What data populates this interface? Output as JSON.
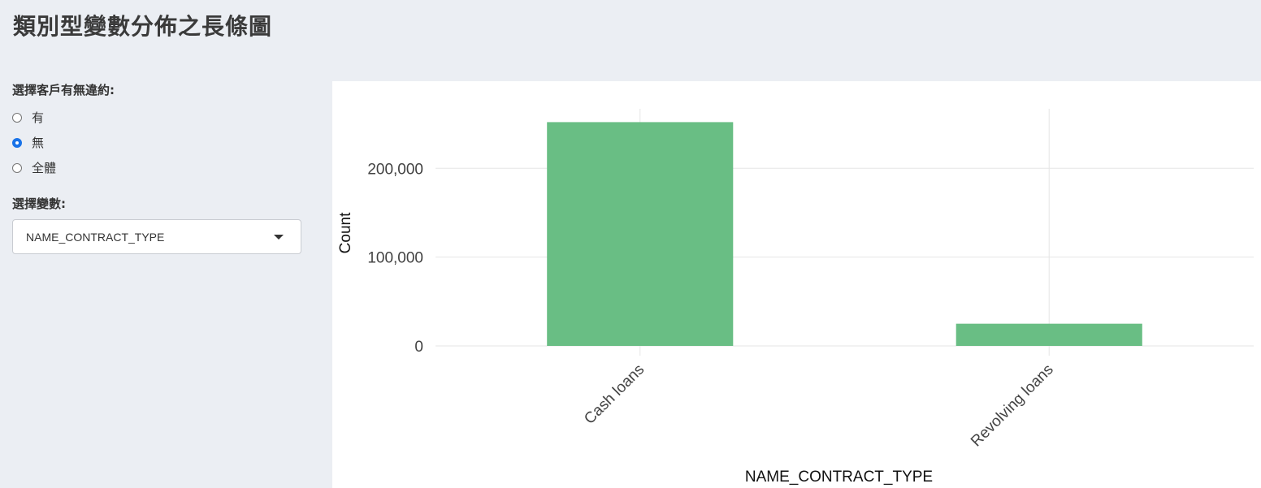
{
  "header": {
    "title": "類別型變數分佈之長條圖"
  },
  "sidebar": {
    "default_label": "選擇客戶有無違約:",
    "radio_options": [
      {
        "label": "有",
        "checked": false
      },
      {
        "label": "無",
        "checked": true
      },
      {
        "label": "全體",
        "checked": false
      }
    ],
    "variable_label": "選擇變數:",
    "variable_selected": "NAME_CONTRACT_TYPE"
  },
  "colors": {
    "bar": "#69be84",
    "grid": "#e6e6e6",
    "accent": "#1a73e8"
  },
  "chart_data": {
    "type": "bar",
    "categories": [
      "Cash loans",
      "Revolving loans"
    ],
    "values": [
      252000,
      25000
    ],
    "xlabel": "NAME_CONTRACT_TYPE",
    "ylabel": "Count",
    "ylim": [
      0,
      267000
    ],
    "yticks": [
      0,
      100000,
      200000
    ],
    "ytick_labels": [
      "0",
      "100,000",
      "200,000"
    ],
    "grid": true
  }
}
